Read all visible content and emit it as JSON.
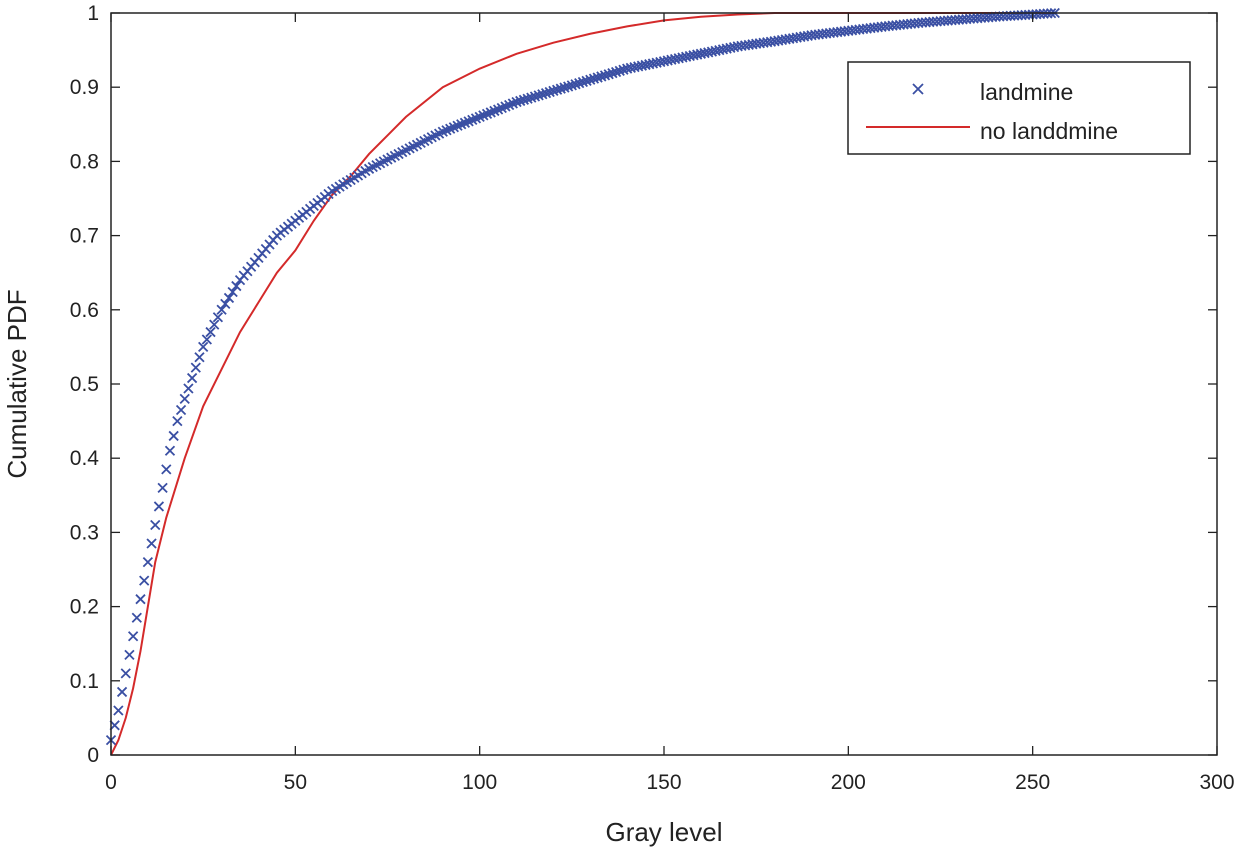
{
  "chart_data": {
    "type": "line",
    "title": "",
    "xlabel": "Gray level",
    "ylabel": "Cumulative PDF",
    "xlim": [
      0,
      300
    ],
    "ylim": [
      0,
      1
    ],
    "x_ticks": [
      0,
      50,
      100,
      150,
      200,
      250,
      300
    ],
    "y_ticks": [
      0,
      0.1,
      0.2,
      0.3,
      0.4,
      0.5,
      0.6,
      0.7,
      0.8,
      0.9,
      1
    ],
    "x_tick_labels": [
      "0",
      "50",
      "100",
      "150",
      "200",
      "250",
      "300"
    ],
    "y_tick_labels": [
      "0",
      "0.1",
      "0.2",
      "0.3",
      "0.4",
      "0.5",
      "0.6",
      "0.7",
      "0.8",
      "0.9",
      "1"
    ],
    "grid": false,
    "legend_position": "top-right",
    "series": [
      {
        "name": "landmine",
        "marker": "x",
        "color": "#3a4fa3",
        "x": [
          0,
          2,
          4,
          6,
          8,
          10,
          12,
          14,
          16,
          18,
          20,
          25,
          30,
          35,
          40,
          45,
          50,
          55,
          60,
          65,
          70,
          80,
          90,
          100,
          110,
          120,
          130,
          140,
          150,
          160,
          170,
          180,
          190,
          200,
          210,
          220,
          230,
          240,
          250,
          256
        ],
        "y": [
          0.02,
          0.06,
          0.11,
          0.16,
          0.21,
          0.26,
          0.31,
          0.36,
          0.41,
          0.45,
          0.48,
          0.55,
          0.6,
          0.64,
          0.67,
          0.7,
          0.72,
          0.74,
          0.76,
          0.775,
          0.79,
          0.815,
          0.84,
          0.86,
          0.88,
          0.895,
          0.91,
          0.925,
          0.935,
          0.945,
          0.955,
          0.962,
          0.97,
          0.976,
          0.982,
          0.987,
          0.991,
          0.995,
          0.998,
          1.0
        ]
      },
      {
        "name": "no landdmine",
        "marker": "none",
        "color": "#d42a2a",
        "x": [
          0,
          2,
          4,
          6,
          8,
          10,
          12,
          15,
          20,
          25,
          30,
          35,
          40,
          45,
          50,
          55,
          60,
          65,
          70,
          75,
          80,
          90,
          100,
          110,
          120,
          130,
          140,
          150,
          160,
          170,
          180,
          200,
          220,
          240,
          256
        ],
        "y": [
          0,
          0.02,
          0.05,
          0.09,
          0.14,
          0.2,
          0.26,
          0.32,
          0.4,
          0.47,
          0.52,
          0.57,
          0.61,
          0.65,
          0.68,
          0.72,
          0.755,
          0.78,
          0.81,
          0.835,
          0.86,
          0.9,
          0.925,
          0.945,
          0.96,
          0.972,
          0.982,
          0.99,
          0.995,
          0.998,
          1.0,
          1.0,
          1.0,
          1.0,
          1.0
        ]
      }
    ]
  }
}
